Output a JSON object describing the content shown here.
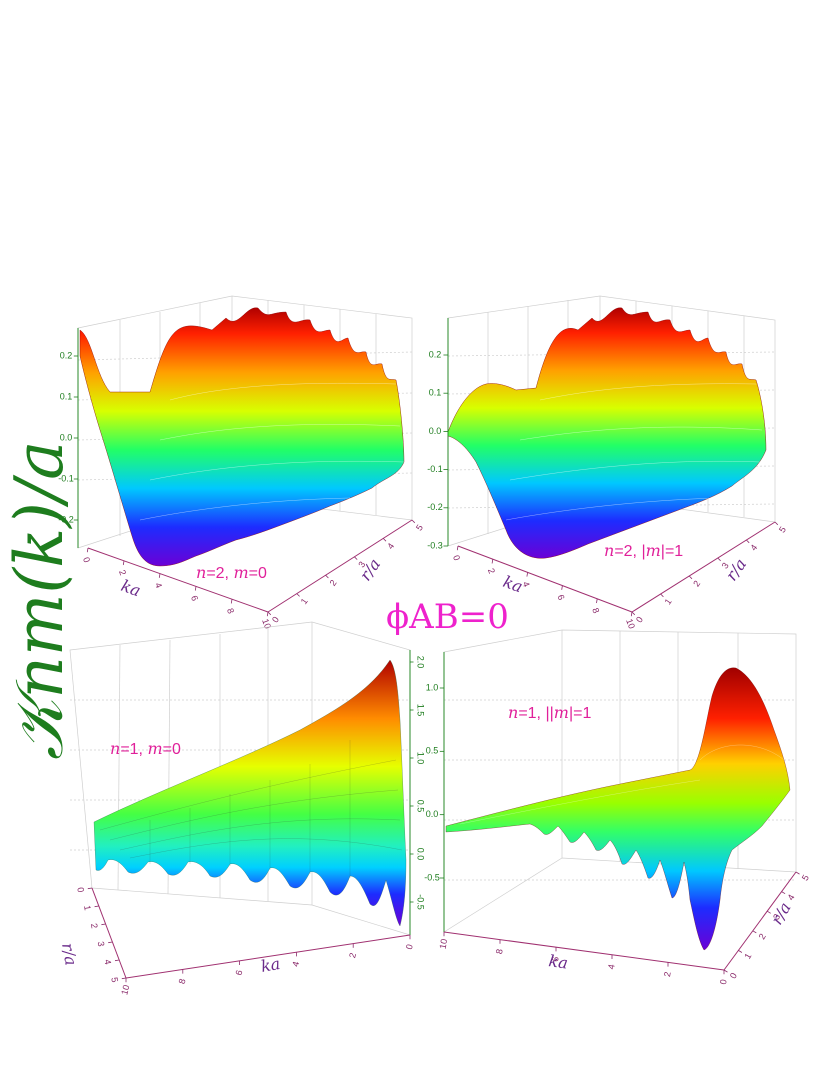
{
  "figure": {
    "ylabel": "𝒦nm(k)/a",
    "center_label": "ϕAB=0"
  },
  "chart_data": [
    {
      "type": "surface3d",
      "panel": "top-left",
      "label_parts": [
        "n",
        "=2, ",
        "m",
        "=0"
      ],
      "zlabel_ticks": [
        "0.2",
        "0.1",
        "0.0",
        "-0.1",
        "-0.2"
      ],
      "x_axis_label": "ka",
      "x_ticks": [
        "0",
        "2",
        "4",
        "6",
        "8",
        "10"
      ],
      "y_axis_label": "r/a",
      "y_ticks": [
        "0",
        "1",
        "2",
        "3",
        "4",
        "5"
      ],
      "zlim": [
        -0.28,
        0.28
      ]
    },
    {
      "type": "surface3d",
      "panel": "top-right",
      "label_parts": [
        "n",
        "=2, |",
        "m",
        "|=1"
      ],
      "zlabel_ticks": [
        "0.2",
        "0.1",
        "0.0",
        "-0.1",
        "-0.2",
        "-0.3"
      ],
      "x_axis_label": "ka",
      "x_ticks": [
        "0",
        "2",
        "4",
        "6",
        "8",
        "10"
      ],
      "y_axis_label": "r/a",
      "y_ticks": [
        "0",
        "1",
        "2",
        "3",
        "4",
        "5"
      ],
      "zlim": [
        -0.3,
        0.25
      ]
    },
    {
      "type": "surface3d",
      "panel": "bottom-left",
      "label_parts": [
        "n",
        "=1, ",
        "m",
        "=0"
      ],
      "zlabel_ticks": [
        "2.0",
        "1.5",
        "1.0",
        "0.5",
        "0.0",
        "-0.5"
      ],
      "x_axis_label": "ka",
      "x_ticks": [
        "10",
        "8",
        "6",
        "4",
        "2",
        "0"
      ],
      "y_axis_label": "r/a",
      "y_ticks": [
        "0",
        "1",
        "2",
        "3",
        "4",
        "5"
      ],
      "zlim": [
        -0.6,
        2.1
      ]
    },
    {
      "type": "surface3d",
      "panel": "bottom-right",
      "label_parts": [
        "n",
        "=1, ||",
        "m",
        "|=1"
      ],
      "zlabel_ticks": [
        "1.0",
        "0.5",
        "0.0",
        "-0.5"
      ],
      "x_axis_label": "ka",
      "x_ticks": [
        "10",
        "8",
        "6",
        "4",
        "2",
        "0"
      ],
      "y_axis_label": "r/a",
      "y_ticks": [
        "0",
        "1",
        "2",
        "3",
        "4",
        "5"
      ],
      "zlim": [
        -0.75,
        1.2
      ]
    }
  ]
}
